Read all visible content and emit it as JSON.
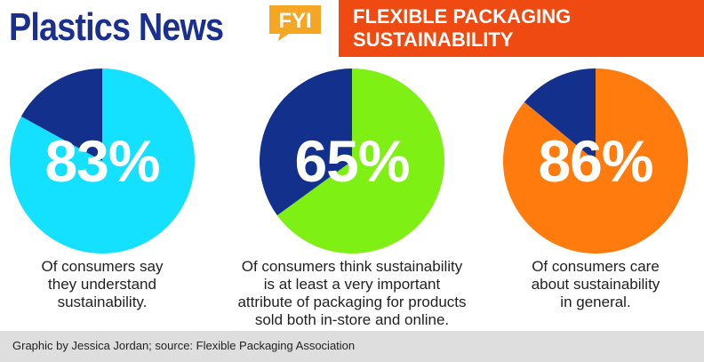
{
  "header": {
    "brand": "Plastics News",
    "fyi_badge": "FYI",
    "banner_line1": "FLEXIBLE PACKAGING",
    "banner_line2": "SUSTAINABILITY"
  },
  "colors": {
    "brand_blue": "#1b2f8f",
    "banner_orange": "#ef4a12",
    "fyi_orange": "#f5a623",
    "dark_blue": "#13308d",
    "cyan": "#14e0ff",
    "green": "#7ef013",
    "orange": "#ff7b0d"
  },
  "chart_data": [
    {
      "type": "pie",
      "values": [
        83,
        17
      ],
      "colors": [
        "#14e0ff",
        "#13308d"
      ],
      "label": "83%",
      "caption": [
        "Of consumers say",
        "they understand",
        "sustainability."
      ]
    },
    {
      "type": "pie",
      "values": [
        65,
        35
      ],
      "colors": [
        "#7ef013",
        "#13308d"
      ],
      "label": "65%",
      "caption": [
        "Of consumers think sustainability",
        "is at least a very important",
        "attribute of packaging for products",
        "sold both in-store and online."
      ]
    },
    {
      "type": "pie",
      "values": [
        86,
        14
      ],
      "colors": [
        "#ff7b0d",
        "#13308d"
      ],
      "label": "86%",
      "caption": [
        "Of consumers care",
        "about sustainability",
        "in general."
      ]
    }
  ],
  "footer": {
    "credit": "Graphic by Jessica Jordan; source: Flexible Packaging Association"
  }
}
